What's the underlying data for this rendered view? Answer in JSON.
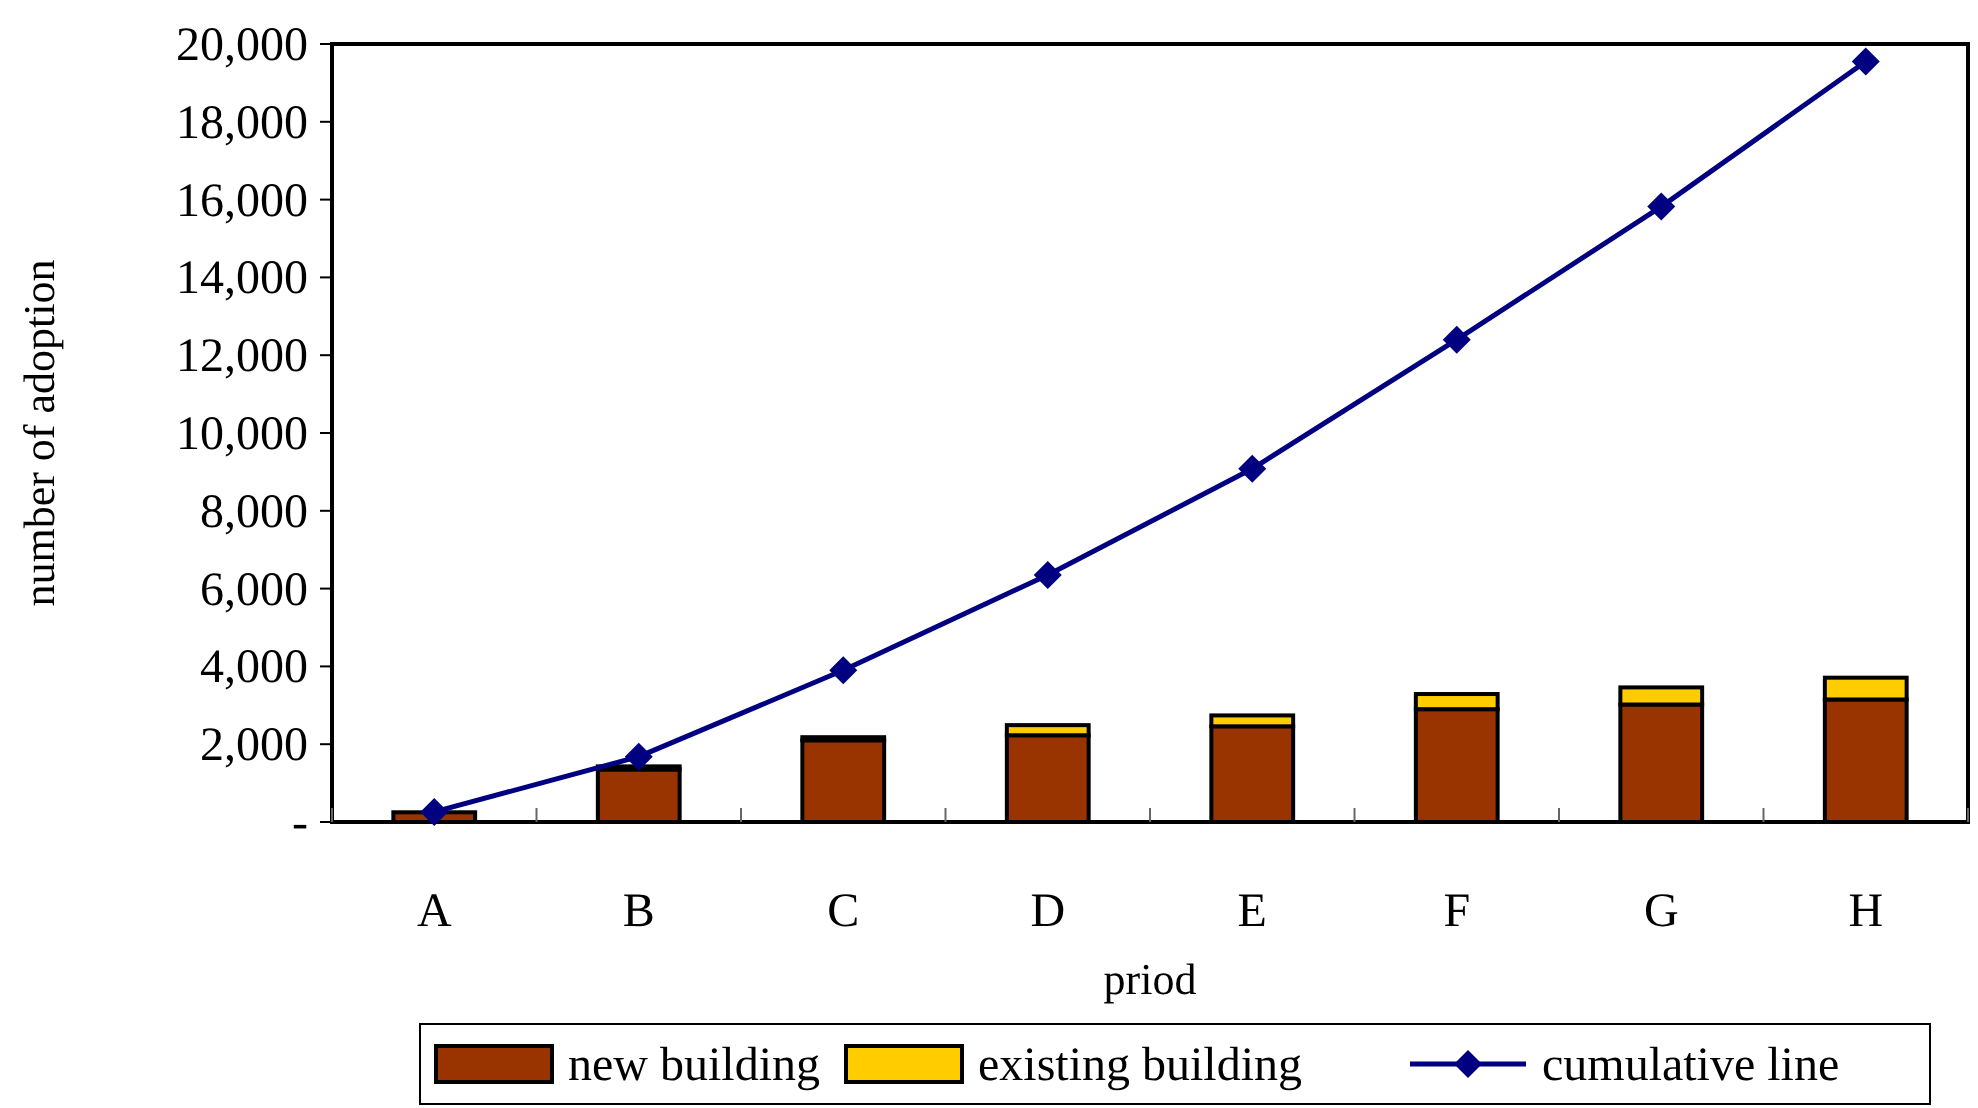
{
  "chart_data": {
    "type": "bar",
    "stacked": true,
    "xlabel": "priod",
    "ylabel": "number of adoption",
    "categories": [
      "A",
      "B",
      "C",
      "D",
      "E",
      "F",
      "G",
      "H"
    ],
    "series": [
      {
        "name": "new building",
        "color": "#993300",
        "values": [
          250,
          1350,
          2100,
          2230,
          2460,
          2900,
          3020,
          3150
        ]
      },
      {
        "name": "existing building",
        "color": "#ffcc00",
        "values": [
          null,
          80,
          80,
          260,
          280,
          390,
          440,
          560
        ]
      },
      {
        "name": "cumulative line",
        "type": "line",
        "color": "#000080",
        "values": [
          260,
          1680,
          3900,
          6350,
          9080,
          12400,
          15820,
          19550
        ]
      }
    ],
    "ylim": [
      0,
      20000
    ],
    "yticks": [
      {
        "value": 0,
        "label": "-"
      },
      {
        "value": 2000,
        "label": "2,000"
      },
      {
        "value": 4000,
        "label": "4,000"
      },
      {
        "value": 6000,
        "label": "6,000"
      },
      {
        "value": 8000,
        "label": "8,000"
      },
      {
        "value": 10000,
        "label": "10,000"
      },
      {
        "value": 12000,
        "label": "12,000"
      },
      {
        "value": 14000,
        "label": "14,000"
      },
      {
        "value": 16000,
        "label": "16,000"
      },
      {
        "value": 18000,
        "label": "18,000"
      },
      {
        "value": 20000,
        "label": "20,000"
      }
    ],
    "grid": false,
    "legend": "bottom",
    "marker": "diamond",
    "line_style": "solid"
  }
}
